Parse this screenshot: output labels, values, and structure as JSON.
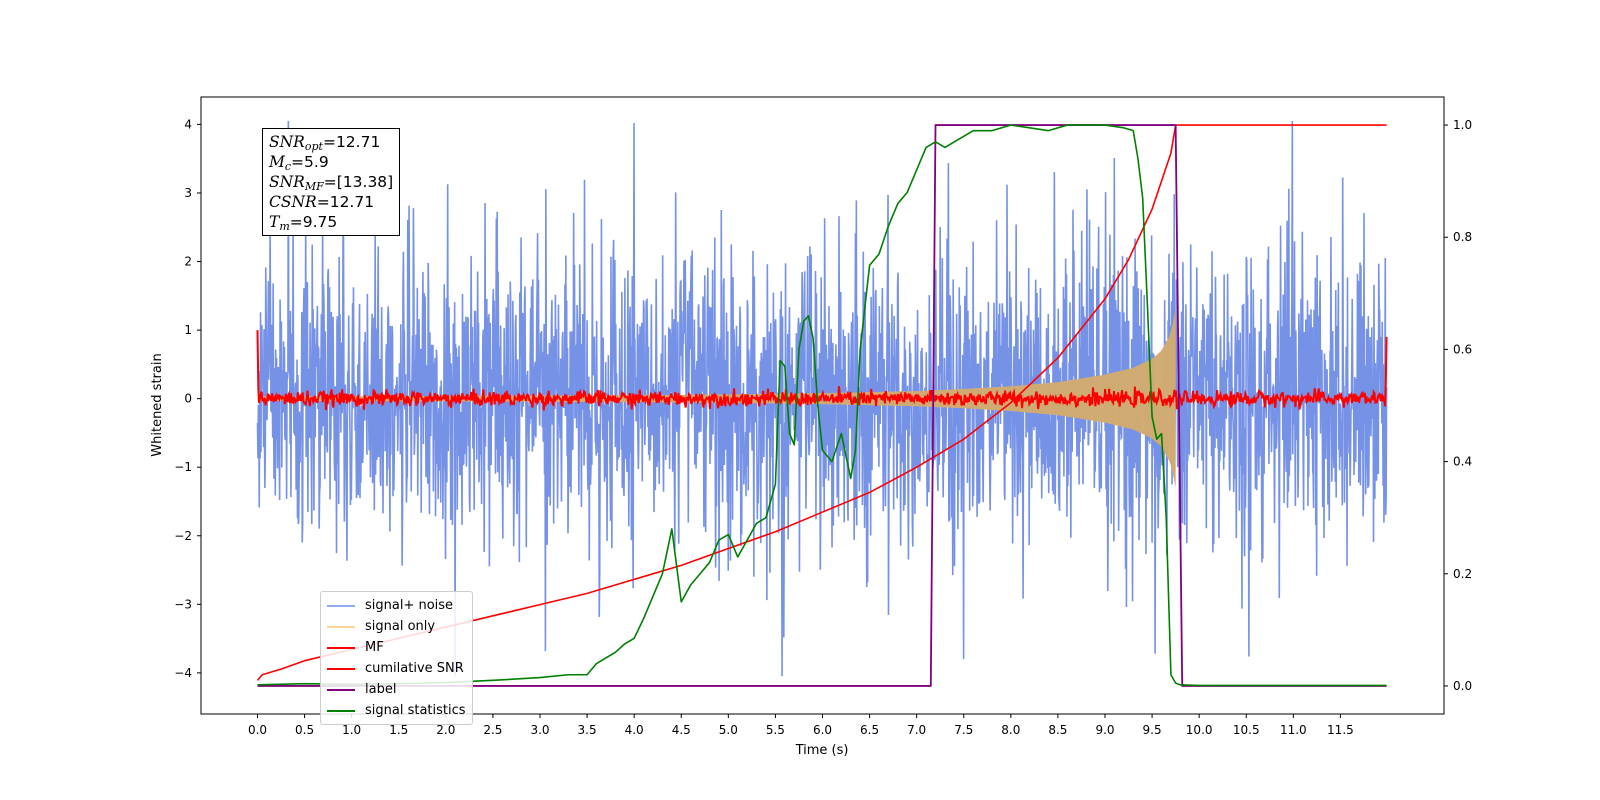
{
  "chart_data": {
    "type": "line",
    "title": "",
    "xlabel": "Time (s)",
    "ylabel": "Whitened strain",
    "xlim": [
      -0.6,
      12.6
    ],
    "ylim": [
      -4.6,
      4.4
    ],
    "y2lim": [
      -0.05,
      1.05
    ],
    "x_ticks": [
      0.0,
      0.5,
      1.0,
      1.5,
      2.0,
      2.5,
      3.0,
      3.5,
      4.0,
      4.5,
      5.0,
      5.5,
      6.0,
      6.5,
      7.0,
      7.5,
      8.0,
      8.5,
      9.0,
      9.5,
      10.0,
      10.5,
      11.0,
      11.5
    ],
    "x_tick_labels": [
      "0.0",
      "0.5",
      "1.0",
      "1.5",
      "2.0",
      "2.5",
      "3.0",
      "3.5",
      "4.0",
      "4.5",
      "5.0",
      "5.5",
      "6.0",
      "6.5",
      "7.0",
      "7.5",
      "8.0",
      "8.5",
      "9.0",
      "9.5",
      "10.0",
      "10.5",
      "11.0",
      "11.5"
    ],
    "y_ticks": [
      -4,
      -3,
      -2,
      -1,
      0,
      1,
      2,
      3,
      4
    ],
    "y_tick_labels": [
      "−4",
      "−3",
      "−2",
      "−1",
      "0",
      "1",
      "2",
      "3",
      "4"
    ],
    "y2_ticks": [
      0.0,
      0.2,
      0.4,
      0.6,
      0.8,
      1.0
    ],
    "y2_tick_labels": [
      "0.0",
      "0.2",
      "0.4",
      "0.6",
      "0.8",
      "1.0"
    ],
    "legend_position": "lower-left",
    "grid": false,
    "series": [
      {
        "name": "signal+ noise",
        "axis": "left",
        "color": "#6f8ce6",
        "kind": "noise",
        "x_range": [
          0.0,
          11.99
        ],
        "std": 1.05,
        "spike_at": [
          [
            4.0,
            4.02
          ],
          [
            5.57,
            -4.12
          ],
          [
            7.5,
            -3.8
          ]
        ]
      },
      {
        "name": "signal only",
        "axis": "left",
        "color": "#f5c878",
        "kind": "chirp",
        "x_range": [
          0.0,
          9.75
        ],
        "envelope_x": [
          0.0,
          2.0,
          4.0,
          5.0,
          6.0,
          7.0,
          7.5,
          8.0,
          8.5,
          9.0,
          9.3,
          9.5,
          9.6,
          9.7,
          9.75
        ],
        "envelope_y": [
          0.03,
          0.04,
          0.05,
          0.06,
          0.08,
          0.11,
          0.14,
          0.18,
          0.24,
          0.35,
          0.45,
          0.58,
          0.7,
          0.95,
          1.3
        ]
      },
      {
        "name": "MF",
        "axis": "left",
        "color": "#ff0000",
        "kind": "noise",
        "x_range": [
          0.0,
          11.99
        ],
        "std": 0.055,
        "end_points": [
          [
            0.0,
            1.0
          ],
          [
            11.99,
            0.9
          ]
        ]
      },
      {
        "name": "cumilative SNR",
        "axis": "right",
        "color": "#ff0000",
        "kind": "line",
        "x": [
          0.0,
          0.05,
          0.25,
          0.5,
          1.0,
          1.5,
          2.0,
          2.5,
          3.0,
          3.5,
          4.0,
          4.5,
          5.0,
          5.5,
          6.0,
          6.5,
          7.0,
          7.5,
          8.0,
          8.5,
          9.0,
          9.25,
          9.5,
          9.6,
          9.7,
          9.75,
          9.76,
          10.5,
          11.99
        ],
        "y": [
          0.01,
          0.02,
          0.03,
          0.045,
          0.065,
          0.085,
          0.105,
          0.125,
          0.145,
          0.165,
          0.19,
          0.215,
          0.245,
          0.275,
          0.31,
          0.345,
          0.39,
          0.44,
          0.505,
          0.585,
          0.69,
          0.76,
          0.85,
          0.9,
          0.95,
          1.0,
          1.0,
          1.0,
          1.0
        ]
      },
      {
        "name": "label",
        "axis": "right",
        "color": "#800080",
        "kind": "line",
        "x": [
          0.0,
          7.15,
          7.2,
          9.75,
          9.82,
          11.99
        ],
        "y": [
          0.0,
          0.0,
          1.0,
          1.0,
          0.0,
          0.0
        ]
      },
      {
        "name": "signal statistics",
        "axis": "right",
        "color": "#008000",
        "kind": "line",
        "x": [
          0.0,
          0.5,
          1.0,
          1.5,
          2.0,
          2.5,
          3.0,
          3.3,
          3.5,
          3.6,
          3.7,
          3.8,
          3.9,
          4.0,
          4.1,
          4.2,
          4.3,
          4.4,
          4.5,
          4.6,
          4.7,
          4.8,
          4.9,
          5.0,
          5.1,
          5.2,
          5.3,
          5.4,
          5.5,
          5.55,
          5.6,
          5.65,
          5.7,
          5.75,
          5.8,
          5.85,
          5.9,
          5.95,
          6.0,
          6.1,
          6.2,
          6.3,
          6.35,
          6.4,
          6.5,
          6.6,
          6.7,
          6.8,
          6.9,
          7.0,
          7.1,
          7.2,
          7.3,
          7.4,
          7.5,
          7.6,
          7.8,
          8.0,
          8.2,
          8.4,
          8.6,
          8.8,
          9.0,
          9.2,
          9.3,
          9.35,
          9.4,
          9.45,
          9.5,
          9.55,
          9.6,
          9.65,
          9.7,
          9.75,
          9.8,
          10.0,
          11.0,
          11.99
        ],
        "y": [
          0.002,
          0.004,
          0.003,
          0.004,
          0.006,
          0.01,
          0.015,
          0.02,
          0.02,
          0.04,
          0.05,
          0.06,
          0.075,
          0.085,
          0.12,
          0.16,
          0.2,
          0.28,
          0.15,
          0.18,
          0.2,
          0.22,
          0.26,
          0.27,
          0.23,
          0.26,
          0.29,
          0.3,
          0.36,
          0.58,
          0.57,
          0.45,
          0.43,
          0.6,
          0.65,
          0.66,
          0.62,
          0.5,
          0.42,
          0.4,
          0.45,
          0.37,
          0.42,
          0.6,
          0.75,
          0.77,
          0.82,
          0.86,
          0.88,
          0.92,
          0.96,
          0.97,
          0.96,
          0.97,
          0.98,
          0.99,
          0.99,
          1.0,
          0.995,
          0.99,
          1.0,
          1.0,
          1.0,
          0.995,
          0.99,
          0.94,
          0.87,
          0.68,
          0.48,
          0.44,
          0.45,
          0.3,
          0.02,
          0.005,
          0.002,
          0.001,
          0.001,
          0.001
        ]
      }
    ]
  },
  "annotation": {
    "snr_opt": {
      "sym": "SNR",
      "sub": "opt",
      "val": "=12.71"
    },
    "mc": {
      "sym": "M",
      "sub": "c",
      "val": "=5.9"
    },
    "snr_mf": {
      "sym": "SNR",
      "sub": "MF",
      "val": "=[13.38]"
    },
    "csnr": {
      "sym": "CSNR",
      "sub": "",
      "val": "=12.71"
    },
    "tm": {
      "sym": "T",
      "sub": "m",
      "val": "=9.75"
    }
  }
}
